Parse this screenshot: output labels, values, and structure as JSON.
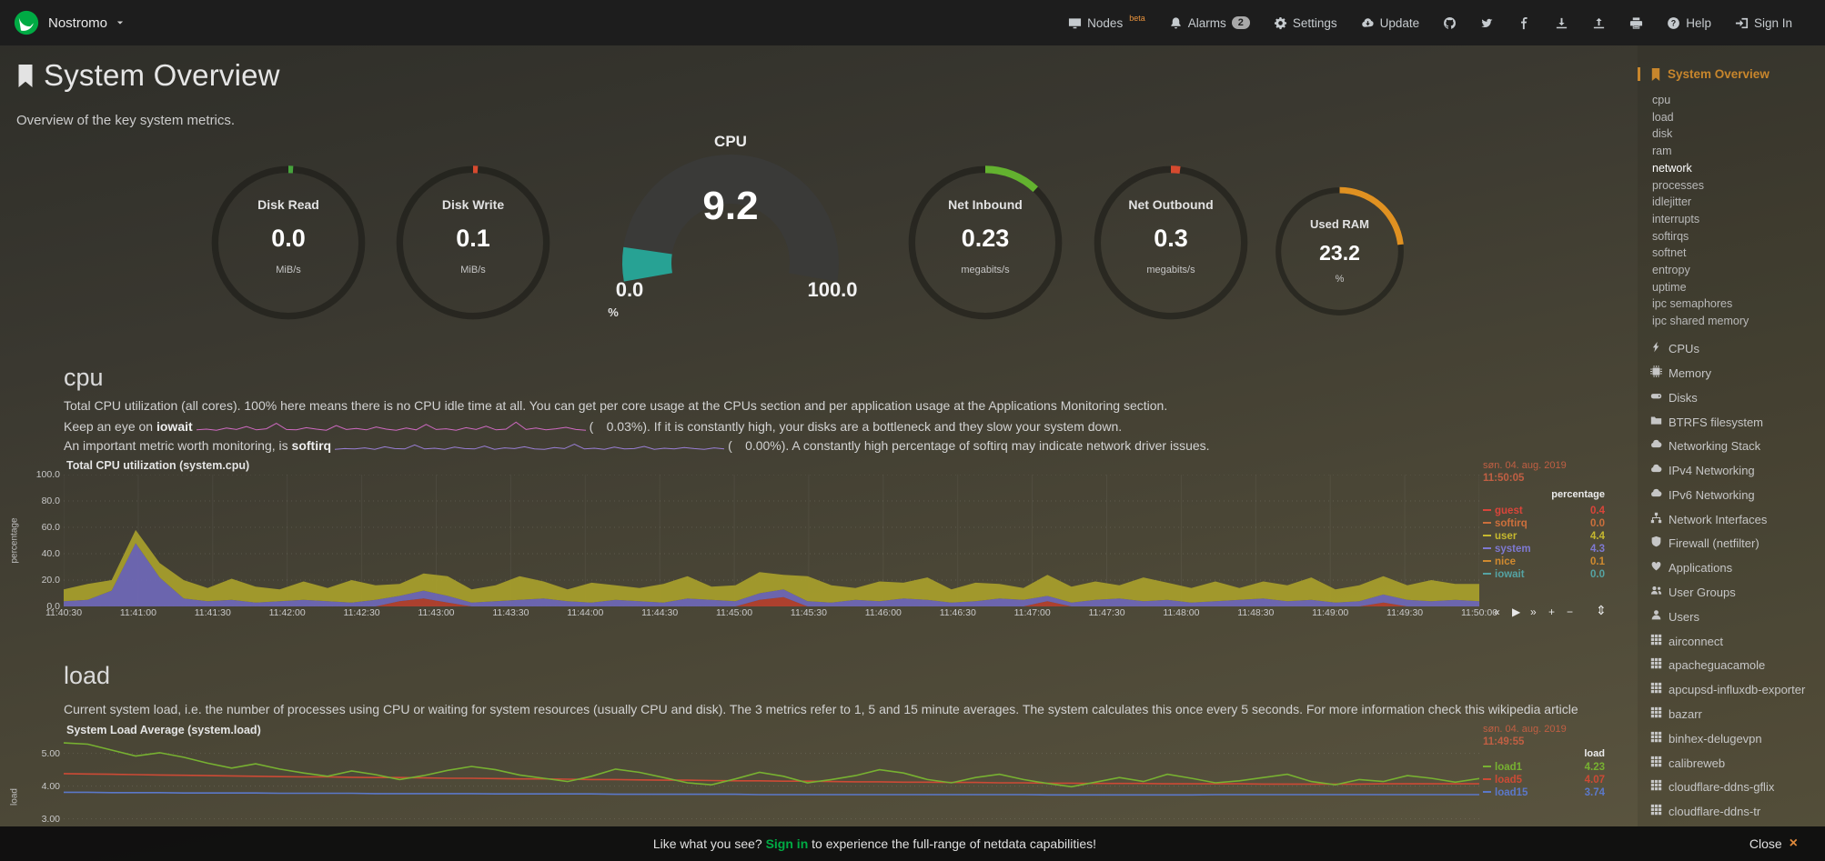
{
  "colors": {
    "accent_green": "#00ab44",
    "active_orange": "#c8862c",
    "date_red": "#c05f43",
    "teal": "#27a294"
  },
  "header": {
    "brand": "Nostromo",
    "nav": [
      {
        "id": "nodes",
        "icon": "monitor",
        "label": "Nodes",
        "sup": "beta"
      },
      {
        "id": "alarms",
        "icon": "bell",
        "label": "Alarms",
        "badge": "2"
      },
      {
        "id": "settings",
        "icon": "gear",
        "label": "Settings"
      },
      {
        "id": "update",
        "icon": "cloud-download",
        "label": "Update"
      },
      {
        "id": "github",
        "icon": "github"
      },
      {
        "id": "twitter",
        "icon": "twitter"
      },
      {
        "id": "facebook",
        "icon": "facebook"
      },
      {
        "id": "import",
        "icon": "arrow-down-tray"
      },
      {
        "id": "export",
        "icon": "arrow-up-tray"
      },
      {
        "id": "print",
        "icon": "printer"
      },
      {
        "id": "help",
        "icon": "question-circle",
        "label": "Help"
      },
      {
        "id": "signin",
        "icon": "sign-in",
        "label": "Sign In"
      }
    ]
  },
  "page": {
    "title": "System Overview",
    "subtitle": "Overview of the key system metrics."
  },
  "gauges": {
    "small": [
      {
        "id": "disk-read",
        "title": "Disk Read",
        "value": "0.0",
        "unit": "MiB/s",
        "pct": 0.6,
        "color": "#46a33c"
      },
      {
        "id": "disk-write",
        "title": "Disk Write",
        "value": "0.1",
        "unit": "MiB/s",
        "pct": 1.0,
        "color": "#d64a2f"
      },
      {
        "id": "net-inbound",
        "title": "Net Inbound",
        "value": "0.23",
        "unit": "megabits/s",
        "pct": 12,
        "color": "#63b22f"
      },
      {
        "id": "net-outbound",
        "title": "Net Outbound",
        "value": "0.3",
        "unit": "megabits/s",
        "pct": 2,
        "color": "#d64a2f"
      },
      {
        "id": "used-ram",
        "title": "Used RAM",
        "value": "23.2",
        "unit": "%",
        "pct": 23.2,
        "color": "#e09121"
      }
    ],
    "cpu": {
      "title": "CPU",
      "value": "9.2",
      "min": "0.0",
      "max": "100.0",
      "unit": "%",
      "pct": 9.2,
      "color": "#27a294",
      "track": "#3a3a38"
    }
  },
  "cpu_section": {
    "heading": "cpu",
    "p1": "Total CPU utilization (all cores). 100% here means there is no CPU idle time at all. You can get per core usage at the CPUs section and per application usage at the Applications Monitoring section.",
    "p2": {
      "prefix": "Keep an eye on ",
      "keyword": "iowait",
      "open": "(",
      "value": "0.03%",
      "suffix": "). If it is constantly high, your disks are a bottleneck and they slow your system down."
    },
    "p3": {
      "prefix": "An important metric worth monitoring, is ",
      "keyword": "softirq",
      "open": "(",
      "value": "0.00%",
      "suffix": "). A constantly high percentage of softirq may indicate network driver issues."
    },
    "iowait_spark": {
      "color": "#cf6ac2",
      "values": [
        0.3,
        0.5,
        0.2,
        0.8,
        0.4,
        1.2,
        0.3,
        0.6,
        2.1,
        0.4,
        0.3,
        0.9,
        0.5,
        0.2,
        1.5,
        0.4,
        0.7,
        0.3,
        1.1,
        0.5,
        0.2,
        0.8,
        0.3,
        1.8,
        0.4,
        0.6,
        0.2,
        0.9,
        0.4,
        1.3,
        0.3,
        0.5,
        2.4,
        0.4,
        0.8,
        0.3,
        0.6,
        1.0,
        0.4,
        0.2
      ]
    },
    "softirq_spark": {
      "color": "#9a7fd6",
      "values": [
        0.2,
        0.4,
        0.3,
        0.6,
        0.2,
        0.9,
        0.4,
        0.3,
        1.4,
        0.3,
        0.5,
        0.2,
        0.8,
        0.4,
        0.3,
        1.1,
        0.2,
        0.6,
        0.4,
        0.9,
        0.3,
        0.2,
        0.7,
        0.4,
        1.6,
        0.3,
        0.5,
        0.2,
        0.8,
        0.3,
        0.4,
        1.0,
        0.2,
        0.5,
        0.3,
        0.7,
        0.4,
        0.2,
        0.6,
        0.3
      ]
    }
  },
  "load_section": {
    "heading": "load",
    "p1": "Current system load, i.e. the number of processes using CPU or waiting for system resources (usually CPU and disk). The 3 metrics refer to 1, 5 and 15 minute averages. The system calculates this once every 5 seconds. For more information check this wikipedia article"
  },
  "cpu_chart": {
    "type": "stacked-area",
    "title": "Total CPU utilization (system.cpu)",
    "date": "søn. 04. aug. 2019",
    "time": "11:50:05",
    "unit_header": "percentage",
    "ylabel": "percentage",
    "ymax": 100,
    "y_ticks": [
      "100.0",
      "80.0",
      "60.0",
      "40.0",
      "20.0",
      "0.0"
    ],
    "x_ticks": [
      "11:40:30",
      "11:41:00",
      "11:41:30",
      "11:42:00",
      "11:42:30",
      "11:43:00",
      "11:43:30",
      "11:44:00",
      "11:44:30",
      "11:45:00",
      "11:45:30",
      "11:46:00",
      "11:46:30",
      "11:47:00",
      "11:47:30",
      "11:48:00",
      "11:48:30",
      "11:49:00",
      "11:49:30",
      "11:50:00"
    ],
    "legend": [
      {
        "name": "guest",
        "value": "0.4",
        "color": "#d9453a"
      },
      {
        "name": "softirq",
        "value": "0.0",
        "color": "#cc6f3c"
      },
      {
        "name": "user",
        "value": "4.4",
        "color": "#c6b82f"
      },
      {
        "name": "system",
        "value": "4.3",
        "color": "#7e79d1"
      },
      {
        "name": "nice",
        "value": "0.1",
        "color": "#d08a2f"
      },
      {
        "name": "iowait",
        "value": "0.0",
        "color": "#55a3a3"
      }
    ],
    "series": [
      {
        "name": "softirq",
        "color": "#b5402e",
        "values": [
          0,
          0,
          0,
          0,
          0,
          0,
          0,
          0,
          0,
          0,
          0,
          0,
          0,
          0,
          4,
          6,
          3,
          0,
          0,
          0,
          0,
          0,
          0,
          0,
          0,
          0,
          0,
          0,
          0,
          5,
          7,
          0,
          0,
          0,
          0,
          0,
          0,
          0,
          0,
          0,
          0,
          4,
          0,
          0,
          0,
          0,
          0,
          0,
          0,
          0,
          0,
          0,
          0,
          0,
          0,
          3,
          0,
          0,
          0,
          0
        ]
      },
      {
        "name": "system",
        "color": "#6f68b8",
        "values": [
          4,
          5,
          12,
          48,
          22,
          6,
          4,
          5,
          3,
          4,
          5,
          4,
          3,
          5,
          4,
          6,
          5,
          3,
          4,
          5,
          6,
          4,
          3,
          5,
          4,
          3,
          6,
          5,
          4,
          5,
          6,
          4,
          3,
          5,
          4,
          6,
          5,
          3,
          4,
          6,
          5,
          4,
          3,
          5,
          6,
          4,
          5,
          3,
          4,
          5,
          6,
          4,
          5,
          3,
          4,
          6,
          5,
          4,
          5,
          4
        ]
      },
      {
        "name": "user",
        "color": "#a89f2b",
        "values": [
          9,
          12,
          8,
          10,
          11,
          14,
          10,
          16,
          12,
          9,
          14,
          10,
          17,
          11,
          9,
          13,
          15,
          10,
          12,
          18,
          13,
          9,
          15,
          11,
          10,
          14,
          17,
          10,
          12,
          16,
          11,
          19,
          13,
          9,
          15,
          12,
          17,
          10,
          14,
          11,
          9,
          16,
          12,
          14,
          10,
          18,
          13,
          11,
          15,
          9,
          13,
          12,
          17,
          10,
          12,
          14,
          11,
          16,
          12,
          13
        ]
      }
    ],
    "toolbox": [
      "«",
      "▶",
      "»",
      "+",
      "−"
    ],
    "resize_icon": "⇕"
  },
  "load_chart": {
    "type": "line",
    "title": "System Load Average (system.load)",
    "date": "søn. 04. aug. 2019",
    "time": "11:49:55",
    "unit_header": "load",
    "ylabel": "load",
    "y_ticks": [
      "5.00",
      "4.00",
      "3.00"
    ],
    "legend": [
      {
        "name": "load1",
        "value": "4.23",
        "color": "#77b131"
      },
      {
        "name": "load5",
        "value": "4.07",
        "color": "#cc4a35"
      },
      {
        "name": "load15",
        "value": "3.74",
        "color": "#5b78c9"
      }
    ],
    "series": [
      {
        "name": "load15",
        "color": "#5b78c9",
        "values": [
          3.81,
          3.81,
          3.8,
          3.8,
          3.8,
          3.79,
          3.79,
          3.79,
          3.79,
          3.78,
          3.78,
          3.78,
          3.78,
          3.77,
          3.77,
          3.77,
          3.77,
          3.77,
          3.76,
          3.76,
          3.76,
          3.76,
          3.76,
          3.75,
          3.75,
          3.75,
          3.75,
          3.75,
          3.75,
          3.74,
          3.74,
          3.74,
          3.74,
          3.74,
          3.74,
          3.74,
          3.74,
          3.74,
          3.74,
          3.74,
          3.74,
          3.73,
          3.73,
          3.73,
          3.73,
          3.73,
          3.73,
          3.73,
          3.74,
          3.74,
          3.74,
          3.74,
          3.74,
          3.74,
          3.74,
          3.74,
          3.74,
          3.74,
          3.74,
          3.74
        ]
      },
      {
        "name": "load5",
        "color": "#cc4a35",
        "values": [
          4.38,
          4.37,
          4.36,
          4.35,
          4.34,
          4.33,
          4.32,
          4.31,
          4.3,
          4.29,
          4.28,
          4.28,
          4.27,
          4.26,
          4.26,
          4.25,
          4.24,
          4.24,
          4.23,
          4.22,
          4.22,
          4.21,
          4.2,
          4.2,
          4.19,
          4.18,
          4.18,
          4.17,
          4.16,
          4.16,
          4.15,
          4.15,
          4.14,
          4.13,
          4.13,
          4.12,
          4.12,
          4.11,
          4.11,
          4.1,
          4.1,
          4.09,
          4.09,
          4.08,
          4.08,
          4.08,
          4.07,
          4.07,
          4.07,
          4.07,
          4.06,
          4.06,
          4.06,
          4.06,
          4.06,
          4.07,
          4.07,
          4.07,
          4.07,
          4.07
        ]
      },
      {
        "name": "load1",
        "color": "#77b131",
        "values": [
          5.32,
          5.28,
          5.1,
          4.92,
          5.02,
          4.88,
          4.7,
          4.55,
          4.68,
          4.52,
          4.4,
          4.3,
          4.46,
          4.35,
          4.2,
          4.32,
          4.48,
          4.6,
          4.5,
          4.34,
          4.24,
          4.14,
          4.3,
          4.52,
          4.42,
          4.26,
          4.1,
          4.04,
          4.22,
          4.42,
          4.3,
          4.1,
          4.2,
          4.32,
          4.5,
          4.4,
          4.2,
          4.1,
          4.26,
          4.36,
          4.2,
          4.08,
          3.98,
          4.12,
          4.26,
          4.14,
          4.36,
          4.24,
          4.1,
          4.16,
          4.26,
          4.36,
          4.14,
          4.04,
          4.2,
          4.14,
          4.32,
          4.24,
          4.12,
          4.23
        ]
      }
    ]
  },
  "sidebar": {
    "active": {
      "label": "System Overview"
    },
    "sub_items": [
      "cpu",
      "load",
      "disk",
      "ram",
      "network",
      "processes",
      "idlejitter",
      "interrupts",
      "softirqs",
      "softnet",
      "entropy",
      "uptime",
      "ipc semaphores",
      "ipc shared memory"
    ],
    "active_sub": "network",
    "sections": [
      {
        "label": "CPUs",
        "icon": "bolt"
      },
      {
        "label": "Memory",
        "icon": "memory"
      },
      {
        "label": "Disks",
        "icon": "disk"
      },
      {
        "label": "BTRFS filesystem",
        "icon": "folder"
      },
      {
        "label": "Networking Stack",
        "icon": "cloud"
      },
      {
        "label": "IPv4 Networking",
        "icon": "cloud"
      },
      {
        "label": "IPv6 Networking",
        "icon": "cloud"
      },
      {
        "label": "Network Interfaces",
        "icon": "interfaces"
      },
      {
        "label": "Firewall (netfilter)",
        "icon": "shield"
      },
      {
        "label": "Applications",
        "icon": "heart"
      },
      {
        "label": "User Groups",
        "icon": "users"
      },
      {
        "label": "Users",
        "icon": "user"
      },
      {
        "label": "airconnect",
        "icon": "grid"
      },
      {
        "label": "apacheguacamole",
        "icon": "grid"
      },
      {
        "label": "apcupsd-influxdb-exporter",
        "icon": "grid"
      },
      {
        "label": "bazarr",
        "icon": "grid"
      },
      {
        "label": "binhex-delugevpn",
        "icon": "grid"
      },
      {
        "label": "calibreweb",
        "icon": "grid"
      },
      {
        "label": "cloudflare-ddns-gflix",
        "icon": "grid"
      },
      {
        "label": "cloudflare-ddns-tr",
        "icon": "grid"
      }
    ]
  },
  "footer": {
    "prefix": "Like what you see? ",
    "link": "Sign in",
    "suffix": " to experience the full-range of netdata capabilities!",
    "close": "Close",
    "close_icon": "×"
  }
}
